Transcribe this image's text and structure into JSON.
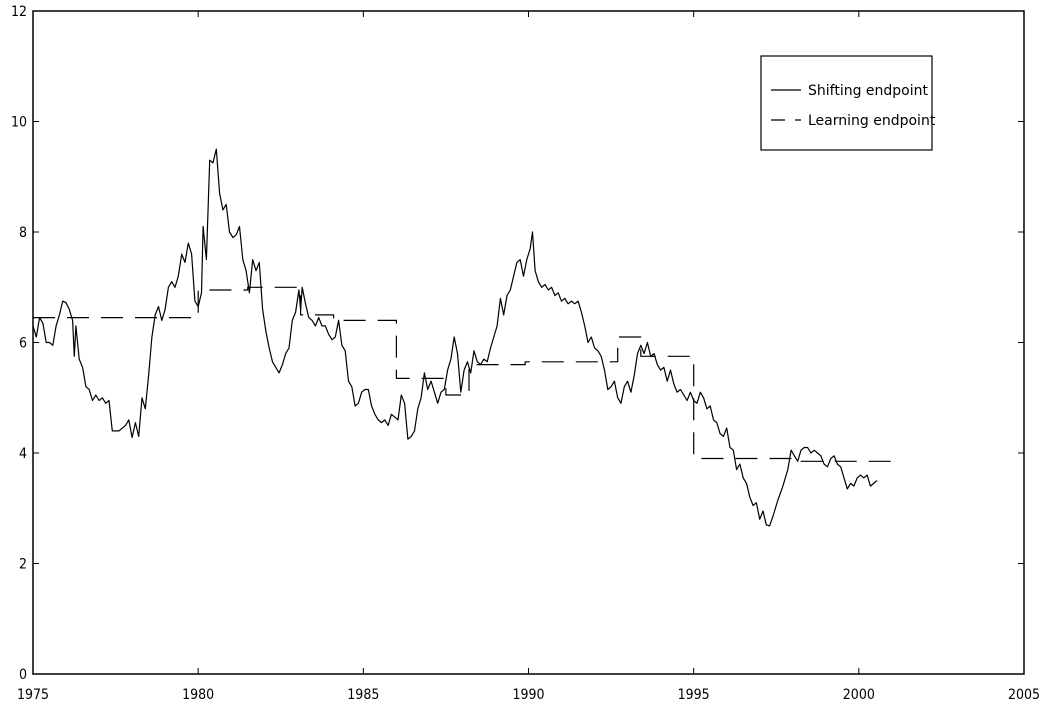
{
  "chart_data": {
    "type": "line",
    "title": "",
    "xlabel": "",
    "ylabel": "",
    "xlim": [
      1975,
      2005
    ],
    "ylim": [
      0,
      12
    ],
    "x_ticks": [
      1975,
      1980,
      1985,
      1990,
      1995,
      2000,
      2005
    ],
    "y_ticks": [
      0,
      2,
      4,
      6,
      8,
      10,
      12
    ],
    "grid": false,
    "legend_position": "top-right",
    "series": [
      {
        "name": "Shifting endpoint",
        "style": "solid",
        "color": "#000000",
        "points": [
          [
            1975.0,
            6.3
          ],
          [
            1975.1,
            6.1
          ],
          [
            1975.2,
            6.45
          ],
          [
            1975.3,
            6.35
          ],
          [
            1975.4,
            6.0
          ],
          [
            1975.5,
            6.0
          ],
          [
            1975.6,
            5.95
          ],
          [
            1975.7,
            6.3
          ],
          [
            1975.8,
            6.5
          ],
          [
            1975.9,
            6.75
          ],
          [
            1976.0,
            6.72
          ],
          [
            1976.1,
            6.6
          ],
          [
            1976.2,
            6.4
          ],
          [
            1976.25,
            5.75
          ],
          [
            1976.3,
            6.3
          ],
          [
            1976.4,
            5.7
          ],
          [
            1976.5,
            5.55
          ],
          [
            1976.6,
            5.2
          ],
          [
            1976.7,
            5.15
          ],
          [
            1976.8,
            4.95
          ],
          [
            1976.9,
            5.05
          ],
          [
            1977.0,
            4.95
          ],
          [
            1977.1,
            5.0
          ],
          [
            1977.2,
            4.9
          ],
          [
            1977.3,
            4.95
          ],
          [
            1977.4,
            4.4
          ],
          [
            1977.6,
            4.4
          ],
          [
            1977.8,
            4.5
          ],
          [
            1977.9,
            4.6
          ],
          [
            1978.0,
            4.28
          ],
          [
            1978.1,
            4.55
          ],
          [
            1978.2,
            4.3
          ],
          [
            1978.3,
            5.0
          ],
          [
            1978.4,
            4.8
          ],
          [
            1978.5,
            5.4
          ],
          [
            1978.6,
            6.1
          ],
          [
            1978.7,
            6.5
          ],
          [
            1978.8,
            6.65
          ],
          [
            1978.9,
            6.4
          ],
          [
            1979.0,
            6.6
          ],
          [
            1979.1,
            7.0
          ],
          [
            1979.2,
            7.1
          ],
          [
            1979.3,
            7.0
          ],
          [
            1979.4,
            7.2
          ],
          [
            1979.5,
            7.6
          ],
          [
            1979.6,
            7.45
          ],
          [
            1979.7,
            7.8
          ],
          [
            1979.8,
            7.6
          ],
          [
            1979.9,
            6.75
          ],
          [
            1980.0,
            6.65
          ],
          [
            1980.1,
            6.9
          ],
          [
            1980.15,
            8.1
          ],
          [
            1980.25,
            7.5
          ],
          [
            1980.35,
            9.3
          ],
          [
            1980.45,
            9.25
          ],
          [
            1980.55,
            9.5
          ],
          [
            1980.65,
            8.7
          ],
          [
            1980.75,
            8.4
          ],
          [
            1980.85,
            8.5
          ],
          [
            1980.95,
            8.0
          ],
          [
            1981.05,
            7.9
          ],
          [
            1981.15,
            7.95
          ],
          [
            1981.25,
            8.1
          ],
          [
            1981.35,
            7.5
          ],
          [
            1981.45,
            7.3
          ],
          [
            1981.55,
            6.9
          ],
          [
            1981.65,
            7.5
          ],
          [
            1981.75,
            7.3
          ],
          [
            1981.85,
            7.45
          ],
          [
            1981.95,
            6.6
          ],
          [
            1982.05,
            6.2
          ],
          [
            1982.15,
            5.9
          ],
          [
            1982.25,
            5.65
          ],
          [
            1982.35,
            5.55
          ],
          [
            1982.45,
            5.45
          ],
          [
            1982.55,
            5.6
          ],
          [
            1982.65,
            5.8
          ],
          [
            1982.75,
            5.9
          ],
          [
            1982.85,
            6.4
          ],
          [
            1982.95,
            6.55
          ],
          [
            1983.05,
            6.95
          ],
          [
            1983.1,
            6.6
          ],
          [
            1983.15,
            7.0
          ],
          [
            1983.25,
            6.7
          ],
          [
            1983.35,
            6.45
          ],
          [
            1983.45,
            6.4
          ],
          [
            1983.55,
            6.3
          ],
          [
            1983.65,
            6.45
          ],
          [
            1983.75,
            6.3
          ],
          [
            1983.85,
            6.3
          ],
          [
            1983.95,
            6.15
          ],
          [
            1984.05,
            6.05
          ],
          [
            1984.15,
            6.1
          ],
          [
            1984.25,
            6.4
          ],
          [
            1984.35,
            5.95
          ],
          [
            1984.45,
            5.85
          ],
          [
            1984.55,
            5.3
          ],
          [
            1984.65,
            5.2
          ],
          [
            1984.75,
            4.85
          ],
          [
            1984.85,
            4.9
          ],
          [
            1984.95,
            5.1
          ],
          [
            1985.05,
            5.15
          ],
          [
            1985.15,
            5.15
          ],
          [
            1985.25,
            4.85
          ],
          [
            1985.35,
            4.7
          ],
          [
            1985.45,
            4.6
          ],
          [
            1985.55,
            4.55
          ],
          [
            1985.65,
            4.6
          ],
          [
            1985.75,
            4.5
          ],
          [
            1985.85,
            4.7
          ],
          [
            1985.95,
            4.65
          ],
          [
            1986.05,
            4.6
          ],
          [
            1986.15,
            5.05
          ],
          [
            1986.25,
            4.9
          ],
          [
            1986.35,
            4.25
          ],
          [
            1986.45,
            4.3
          ],
          [
            1986.55,
            4.4
          ],
          [
            1986.65,
            4.8
          ],
          [
            1986.75,
            5.0
          ],
          [
            1986.85,
            5.45
          ],
          [
            1986.95,
            5.15
          ],
          [
            1987.05,
            5.3
          ],
          [
            1987.15,
            5.1
          ],
          [
            1987.25,
            4.9
          ],
          [
            1987.35,
            5.1
          ],
          [
            1987.45,
            5.15
          ],
          [
            1987.55,
            5.5
          ],
          [
            1987.65,
            5.7
          ],
          [
            1987.75,
            6.1
          ],
          [
            1987.85,
            5.8
          ],
          [
            1987.95,
            5.1
          ],
          [
            1988.05,
            5.5
          ],
          [
            1988.15,
            5.65
          ],
          [
            1988.25,
            5.45
          ],
          [
            1988.35,
            5.85
          ],
          [
            1988.45,
            5.65
          ],
          [
            1988.55,
            5.6
          ],
          [
            1988.65,
            5.7
          ],
          [
            1988.75,
            5.65
          ],
          [
            1988.85,
            5.9
          ],
          [
            1988.95,
            6.1
          ],
          [
            1989.05,
            6.3
          ],
          [
            1989.15,
            6.8
          ],
          [
            1989.25,
            6.5
          ],
          [
            1989.35,
            6.85
          ],
          [
            1989.45,
            6.95
          ],
          [
            1989.55,
            7.2
          ],
          [
            1989.65,
            7.45
          ],
          [
            1989.75,
            7.5
          ],
          [
            1989.85,
            7.2
          ],
          [
            1989.95,
            7.5
          ],
          [
            1990.05,
            7.7
          ],
          [
            1990.12,
            8.0
          ],
          [
            1990.2,
            7.3
          ],
          [
            1990.3,
            7.1
          ],
          [
            1990.4,
            7.0
          ],
          [
            1990.5,
            7.05
          ],
          [
            1990.6,
            6.95
          ],
          [
            1990.7,
            7.0
          ],
          [
            1990.8,
            6.85
          ],
          [
            1990.9,
            6.9
          ],
          [
            1991.0,
            6.75
          ],
          [
            1991.1,
            6.8
          ],
          [
            1991.2,
            6.7
          ],
          [
            1991.3,
            6.75
          ],
          [
            1991.4,
            6.7
          ],
          [
            1991.5,
            6.75
          ],
          [
            1991.6,
            6.55
          ],
          [
            1991.7,
            6.3
          ],
          [
            1991.8,
            6.0
          ],
          [
            1991.9,
            6.1
          ],
          [
            1992.0,
            5.9
          ],
          [
            1992.1,
            5.85
          ],
          [
            1992.2,
            5.75
          ],
          [
            1992.3,
            5.5
          ],
          [
            1992.4,
            5.15
          ],
          [
            1992.5,
            5.2
          ],
          [
            1992.6,
            5.3
          ],
          [
            1992.7,
            5.0
          ],
          [
            1992.8,
            4.9
          ],
          [
            1992.9,
            5.2
          ],
          [
            1993.0,
            5.3
          ],
          [
            1993.1,
            5.1
          ],
          [
            1993.2,
            5.4
          ],
          [
            1993.3,
            5.8
          ],
          [
            1993.4,
            5.95
          ],
          [
            1993.5,
            5.8
          ],
          [
            1993.6,
            6.0
          ],
          [
            1993.7,
            5.75
          ],
          [
            1993.8,
            5.8
          ],
          [
            1993.9,
            5.6
          ],
          [
            1994.0,
            5.5
          ],
          [
            1994.1,
            5.55
          ],
          [
            1994.2,
            5.3
          ],
          [
            1994.3,
            5.5
          ],
          [
            1994.4,
            5.25
          ],
          [
            1994.5,
            5.1
          ],
          [
            1994.6,
            5.15
          ],
          [
            1994.7,
            5.05
          ],
          [
            1994.8,
            4.95
          ],
          [
            1994.9,
            5.1
          ],
          [
            1995.0,
            4.95
          ],
          [
            1995.1,
            4.9
          ],
          [
            1995.2,
            5.1
          ],
          [
            1995.3,
            5.0
          ],
          [
            1995.4,
            4.8
          ],
          [
            1995.5,
            4.85
          ],
          [
            1995.6,
            4.6
          ],
          [
            1995.7,
            4.55
          ],
          [
            1995.8,
            4.35
          ],
          [
            1995.9,
            4.3
          ],
          [
            1996.0,
            4.45
          ],
          [
            1996.1,
            4.1
          ],
          [
            1996.2,
            4.05
          ],
          [
            1996.3,
            3.7
          ],
          [
            1996.4,
            3.8
          ],
          [
            1996.5,
            3.55
          ],
          [
            1996.6,
            3.45
          ],
          [
            1996.7,
            3.2
          ],
          [
            1996.8,
            3.05
          ],
          [
            1996.9,
            3.1
          ],
          [
            1997.0,
            2.8
          ],
          [
            1997.1,
            2.95
          ],
          [
            1997.2,
            2.7
          ],
          [
            1997.3,
            2.68
          ],
          [
            1997.4,
            2.85
          ],
          [
            1997.55,
            3.15
          ],
          [
            1997.7,
            3.4
          ],
          [
            1997.85,
            3.7
          ],
          [
            1997.95,
            4.05
          ],
          [
            1998.05,
            3.95
          ],
          [
            1998.15,
            3.85
          ],
          [
            1998.25,
            4.05
          ],
          [
            1998.35,
            4.1
          ],
          [
            1998.45,
            4.1
          ],
          [
            1998.55,
            4.0
          ],
          [
            1998.65,
            4.05
          ],
          [
            1998.75,
            4.0
          ],
          [
            1998.85,
            3.95
          ],
          [
            1998.95,
            3.8
          ],
          [
            1999.05,
            3.75
          ],
          [
            1999.15,
            3.9
          ],
          [
            1999.25,
            3.95
          ],
          [
            1999.35,
            3.8
          ],
          [
            1999.45,
            3.75
          ],
          [
            1999.55,
            3.55
          ],
          [
            1999.65,
            3.35
          ],
          [
            1999.75,
            3.45
          ],
          [
            1999.85,
            3.4
          ],
          [
            1999.95,
            3.55
          ],
          [
            2000.05,
            3.6
          ],
          [
            2000.15,
            3.55
          ],
          [
            2000.25,
            3.6
          ],
          [
            2000.35,
            3.4
          ],
          [
            2000.45,
            3.45
          ],
          [
            2000.55,
            3.5
          ]
        ]
      },
      {
        "name": "Learning endpoint",
        "style": "dashed",
        "color": "#000000",
        "points": [
          [
            1975.0,
            6.45
          ],
          [
            1980.0,
            6.45
          ],
          [
            1980.0,
            6.95
          ],
          [
            1981.5,
            6.95
          ],
          [
            1981.5,
            7.0
          ],
          [
            1983.1,
            7.0
          ],
          [
            1983.1,
            6.5
          ],
          [
            1984.1,
            6.5
          ],
          [
            1984.1,
            6.4
          ],
          [
            1986.0,
            6.4
          ],
          [
            1986.0,
            5.35
          ],
          [
            1987.5,
            5.35
          ],
          [
            1987.5,
            5.05
          ],
          [
            1988.2,
            5.05
          ],
          [
            1988.2,
            5.6
          ],
          [
            1989.9,
            5.6
          ],
          [
            1989.9,
            5.65
          ],
          [
            1992.7,
            5.65
          ],
          [
            1992.7,
            6.1
          ],
          [
            1993.4,
            6.1
          ],
          [
            1993.4,
            5.75
          ],
          [
            1995.0,
            5.75
          ],
          [
            1995.0,
            3.9
          ],
          [
            1998.2,
            3.9
          ],
          [
            1998.2,
            3.85
          ],
          [
            2001.0,
            3.85
          ]
        ]
      }
    ]
  }
}
